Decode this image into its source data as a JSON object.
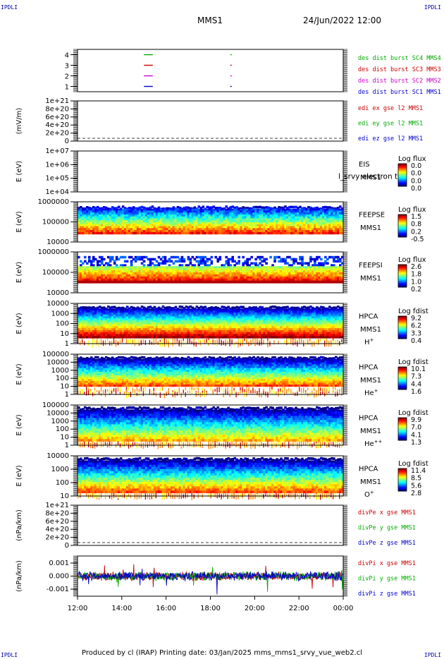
{
  "header": {
    "corner_left_top": "IPDLI",
    "corner_right_top": "IPDLI",
    "corner_left_bottom": "IPDLI",
    "corner_right_bottom": "IPDLI",
    "spacecraft": "MMS1",
    "datetime": "24/Jun/2022 12:00"
  },
  "footer": {
    "text": "Produced by cl (IRAP)   Printing date: 03/Jan/2025   mms_mms1_srvy_vue_web2.cl"
  },
  "colors": {
    "mms1": "#0000cc",
    "mms2": "#cc00cc",
    "mms3": "#cc0000",
    "mms4": "#00aa00",
    "x": "#cc0000",
    "y": "#00aa00",
    "z": "#0000cc"
  },
  "chart_data": [
    {
      "type": "line",
      "name": "burst",
      "ylim": [
        0.5,
        4.5
      ],
      "yticks": [
        "1",
        "2",
        "3",
        "4"
      ],
      "series": [
        {
          "name": "des dist burst SC1 MMS1",
          "color": "#0000cc",
          "y": 1,
          "intervals": [
            [
              15.0,
              15.4
            ],
            [
              18.9,
              18.95
            ]
          ]
        },
        {
          "name": "des dist burst SC2 MMS2",
          "color": "#cc00cc",
          "y": 2,
          "intervals": [
            [
              15.0,
              15.4
            ],
            [
              18.9,
              18.95
            ]
          ]
        },
        {
          "name": "des dist burst SC3 MMS3",
          "color": "#cc0000",
          "y": 3,
          "intervals": [
            [
              15.0,
              15.4
            ],
            [
              18.9,
              18.95
            ]
          ]
        },
        {
          "name": "des dist burst SC4 MMS4",
          "color": "#00aa00",
          "y": 4,
          "intervals": [
            [
              15.0,
              15.4
            ],
            [
              18.9,
              18.95
            ]
          ]
        }
      ]
    },
    {
      "type": "line",
      "name": "edi",
      "ylabel": "(mV/m)",
      "yticks": [
        "1e+21",
        "8e+20",
        "6e+20",
        "4e+20",
        "2e+20",
        "0"
      ],
      "series": [
        {
          "name": "edi ex gse l2 MMS1",
          "color": "#cc0000"
        },
        {
          "name": "edi ey gse l2 MMS1",
          "color": "#00aa00"
        },
        {
          "name": "edi ez gse l2 MMS1",
          "color": "#0000cc"
        }
      ]
    },
    {
      "type": "heatmap",
      "name": "eis",
      "ylabel": "E (eV)",
      "yticks": [
        "1e+07",
        "1e+06",
        "1e+05",
        "1e+04"
      ],
      "labels": [
        "EIS",
        "MMS1"
      ],
      "overlay_text": "l_srvy electron to",
      "colorbar": {
        "title": "Log flux",
        "ticks": [
          "0.0",
          "0.0",
          "0.0",
          "0.0"
        ]
      },
      "fill": "empty"
    },
    {
      "type": "heatmap",
      "name": "feepse",
      "ylabel": "E (eV)",
      "yticks": [
        "1000000",
        "100000",
        "10000"
      ],
      "labels": [
        "FEEPSE",
        "MMS1"
      ],
      "colorbar": {
        "title": "Log flux",
        "ticks": [
          "1.5",
          "0.8",
          "0.2",
          "-0.5"
        ]
      },
      "fill": "feepse"
    },
    {
      "type": "heatmap",
      "name": "feepsi",
      "ylabel": "E (eV)",
      "yticks": [
        "1000000",
        "100000",
        "10000"
      ],
      "labels": [
        "FEEPSI",
        "MMS1"
      ],
      "colorbar": {
        "title": "Log flux",
        "ticks": [
          "2.6",
          "1.8",
          "1.0",
          "0.2"
        ]
      },
      "fill": "feepsi"
    },
    {
      "type": "heatmap",
      "name": "hpca_h",
      "ylabel": "E (eV)",
      "yticks": [
        "10000",
        "1000",
        "100",
        "10",
        "1"
      ],
      "labels": [
        "HPCA",
        "MMS1"
      ],
      "species": "H",
      "species_sup": "+",
      "colorbar": {
        "title": "Log fdist",
        "ticks": [
          "9.2",
          "6.2",
          "3.3",
          "0.4"
        ]
      },
      "fill": "hpca_h"
    },
    {
      "type": "heatmap",
      "name": "hpca_he",
      "ylabel": "E (eV)",
      "yticks": [
        "100000",
        "10000",
        "1000",
        "100",
        "10",
        "1"
      ],
      "labels": [
        "HPCA",
        "MMS1"
      ],
      "species": "He",
      "species_sup": "+",
      "colorbar": {
        "title": "Log fdist",
        "ticks": [
          "10.1",
          "7.3",
          "4.4",
          "1.6"
        ]
      },
      "fill": "hpca_he"
    },
    {
      "type": "heatmap",
      "name": "hpca_hepp",
      "ylabel": "E (eV)",
      "yticks": [
        "100000",
        "10000",
        "1000",
        "100",
        "10",
        "1"
      ],
      "labels": [
        "HPCA",
        "MMS1"
      ],
      "species": "He",
      "species_sup": "++",
      "colorbar": {
        "title": "Log fdist",
        "ticks": [
          "9.9",
          "7.0",
          "4.1",
          "1.3"
        ]
      },
      "fill": "hpca_hepp"
    },
    {
      "type": "heatmap",
      "name": "hpca_o",
      "ylabel": "E (eV)",
      "yticks": [
        "10000",
        "1000",
        "100",
        "10"
      ],
      "labels": [
        "HPCA",
        "MMS1"
      ],
      "species": "O",
      "species_sup": "+",
      "colorbar": {
        "title": "Log fdist",
        "ticks": [
          "11.4",
          "8.5",
          "5.6",
          "2.8"
        ]
      },
      "fill": "hpca_o"
    },
    {
      "type": "line",
      "name": "divpe",
      "ylabel": "(nPa/km)",
      "yticks": [
        "1e+21",
        "8e+20",
        "6e+20",
        "4e+20",
        "2e+20",
        "0"
      ],
      "series": [
        {
          "name": "divPe x gse MMS1",
          "color": "#cc0000"
        },
        {
          "name": "divPe y gse MMS1",
          "color": "#00aa00"
        },
        {
          "name": "divPe z gse MMS1",
          "color": "#0000cc"
        }
      ]
    },
    {
      "type": "line",
      "name": "divpi",
      "ylabel": "(nPa/km)",
      "yticks": [
        "0.001",
        "0.000",
        "-0.001"
      ],
      "ylim": [
        -0.0015,
        0.0015
      ],
      "series": [
        {
          "name": "divPi x gse MMS1",
          "color": "#cc0000"
        },
        {
          "name": "divPi y gse MMS1",
          "color": "#00aa00"
        },
        {
          "name": "divPi z gse MMS1",
          "color": "#0000cc"
        }
      ]
    }
  ],
  "xaxis": {
    "range": [
      12,
      24
    ],
    "ticks": [
      "12:00",
      "14:00",
      "16:00",
      "18:00",
      "20:00",
      "22:00",
      "00:00"
    ]
  }
}
